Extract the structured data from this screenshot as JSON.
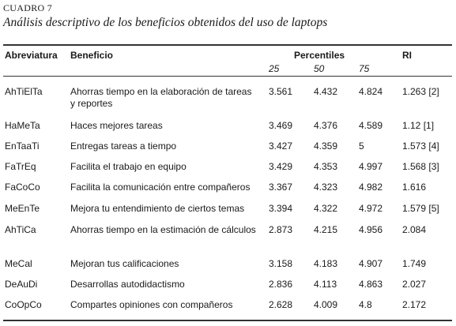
{
  "table": {
    "label": "CUADRO 7",
    "title": "Análisis descriptivo de los beneficios obtenidos del uso de laptops",
    "headers": {
      "abbr": "Abreviatura",
      "benefit": "Beneficio",
      "percentiles": "Percentiles",
      "ri": "RI",
      "p25": "25",
      "p50": "50",
      "p75": "75"
    },
    "rows": [
      {
        "abbr": "AhTiElTa",
        "benefit": "Ahorras tiempo en la elaboración de tareas y reportes",
        "p25": "3.561",
        "p50": "4.432",
        "p75": "4.824",
        "ri": "1.263 [2]"
      },
      {
        "abbr": "HaMeTa",
        "benefit": "Haces mejores tareas",
        "p25": "3.469",
        "p50": "4.376",
        "p75": "4.589",
        "ri": "1.12 [1]"
      },
      {
        "abbr": "EnTaaTi",
        "benefit": " Entregas tareas a tiempo",
        "p25": "3.427",
        "p50": "4.359",
        "p75": "5",
        "ri": "1.573 [4]"
      },
      {
        "abbr": "FaTrEq",
        "benefit": "Facilita el trabajo en equipo",
        "p25": "3.429",
        "p50": "4.353",
        "p75": "4.997",
        "ri": "1.568 [3]"
      },
      {
        "abbr": "FaCoCo",
        "benefit": "Facilita la comunicación entre compañeros",
        "p25": "3.367",
        "p50": "4.323",
        "p75": "4.982",
        "ri": "1.616"
      },
      {
        "abbr": "MeEnTe",
        "benefit": "Mejora tu entendimiento de ciertos temas",
        "p25": "3.394",
        "p50": "4.322",
        "p75": "4.972",
        "ri": "1.579 [5]"
      },
      {
        "abbr": "AhTiCa",
        "benefit": "Ahorras tiempo en la estimación de cálculos",
        "p25": "2.873",
        "p50": "4.215",
        "p75": "4.956",
        "ri": "2.084"
      },
      {
        "abbr": "MeCal",
        "benefit": "Mejoran tus calificaciones",
        "p25": "3.158",
        "p50": "4.183",
        "p75": "4.907",
        "ri": "1.749"
      },
      {
        "abbr": "DeAuDi",
        "benefit": "Desarrollas autodidactismo",
        "p25": "2.836",
        "p50": "4.113",
        "p75": "4.863",
        "ri": "2.027"
      },
      {
        "abbr": "CoOpCo",
        "benefit": "Compartes opiniones con compañeros",
        "p25": "2.628",
        "p50": "4.009",
        "p75": "4.8",
        "ri": "2.172"
      }
    ]
  }
}
